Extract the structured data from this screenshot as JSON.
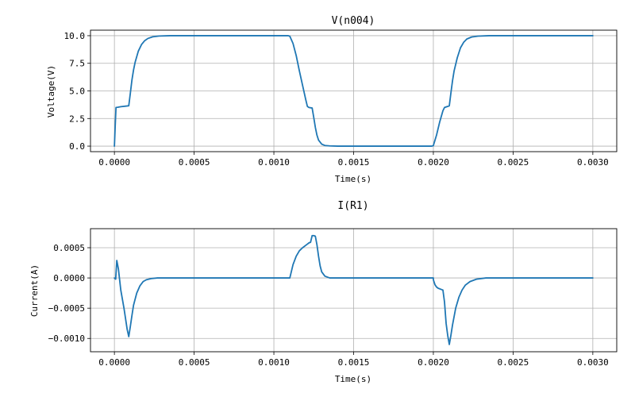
{
  "chart_data": [
    {
      "type": "line",
      "title": "V(n004)",
      "xlabel": "Time(s)",
      "ylabel": "Voltage(V)",
      "xlim": [
        -0.00015,
        0.00315
      ],
      "ylim": [
        -0.5,
        10.5
      ],
      "grid": true,
      "xticks": [
        0.0,
        0.0005,
        0.001,
        0.0015,
        0.002,
        0.0025,
        0.003
      ],
      "xtick_labels": [
        "0.0000",
        "0.0005",
        "0.0010",
        "0.0015",
        "0.0020",
        "0.0025",
        "0.0030"
      ],
      "yticks": [
        0.0,
        2.5,
        5.0,
        7.5,
        10.0
      ],
      "ytick_labels": [
        "0.0",
        "2.5",
        "5.0",
        "7.5",
        "10.0"
      ],
      "color": "#1f77b4",
      "series": [
        {
          "x": [
            0.0,
            5e-06,
            1e-05,
            2e-05,
            4e-05,
            7e-05,
            9e-05,
            0.0001,
            0.00011,
            0.00012,
            0.00013,
            0.00015,
            0.00017,
            0.00019,
            0.00021,
            0.00024,
            0.00028,
            0.00035,
            0.0005,
            0.0008,
            0.00109,
            0.0011,
            0.00112,
            0.00114,
            0.00116,
            0.00118,
            0.0012,
            0.00121,
            0.00122,
            0.00124,
            0.00125,
            0.00126,
            0.00127,
            0.00128,
            0.0013,
            0.00132,
            0.00135,
            0.0014,
            0.0016,
            0.0018,
            0.00199,
            0.002,
            0.00202,
            0.00204,
            0.00206,
            0.00207,
            0.00209,
            0.0021,
            0.00211,
            0.00212,
            0.00213,
            0.00215,
            0.00217,
            0.00219,
            0.00221,
            0.00224,
            0.00228,
            0.00235,
            0.0025,
            0.0028,
            0.003
          ],
          "y": [
            0.0,
            1.8,
            3.5,
            3.52,
            3.57,
            3.62,
            3.65,
            4.8,
            6.0,
            6.9,
            7.6,
            8.6,
            9.2,
            9.55,
            9.75,
            9.9,
            9.97,
            10.0,
            10.0,
            10.0,
            10.0,
            9.95,
            9.3,
            8.2,
            6.8,
            5.5,
            4.2,
            3.6,
            3.5,
            3.45,
            2.6,
            1.7,
            1.0,
            0.55,
            0.18,
            0.06,
            0.02,
            0.0,
            0.0,
            0.0,
            0.0,
            0.05,
            1.0,
            2.2,
            3.2,
            3.5,
            3.6,
            3.65,
            4.8,
            5.9,
            6.8,
            8.0,
            8.9,
            9.4,
            9.7,
            9.88,
            9.96,
            10.0,
            10.0,
            10.0,
            10.0
          ]
        }
      ]
    },
    {
      "type": "line",
      "title": "I(R1)",
      "xlabel": "Time(s)",
      "ylabel": "Current(A)",
      "xlim": [
        -0.00015,
        0.00315
      ],
      "ylim": [
        -0.00122,
        0.000815
      ],
      "grid": true,
      "xticks": [
        0.0,
        0.0005,
        0.001,
        0.0015,
        0.002,
        0.0025,
        0.003
      ],
      "xtick_labels": [
        "0.0000",
        "0.0005",
        "0.0010",
        "0.0015",
        "0.0020",
        "0.0025",
        "0.0030"
      ],
      "yticks": [
        -0.001,
        -0.0005,
        0.0,
        0.0005
      ],
      "ytick_labels": [
        "−0.0010",
        "−0.0005",
        "0.0000",
        "0.0005"
      ],
      "color": "#1f77b4",
      "series": [
        {
          "x": [
            0.0,
            8e-06,
            1.5e-05,
            2.5e-05,
            4e-05,
            6e-05,
            8e-05,
            9e-05,
            0.0001,
            0.00011,
            0.00012,
            0.00014,
            0.00016,
            0.00018,
            0.0002,
            0.00023,
            0.00027,
            0.00032,
            0.0004,
            0.0007,
            0.0011,
            0.00112,
            0.00114,
            0.00116,
            0.00118,
            0.0012,
            0.00121,
            0.00122,
            0.00123,
            0.00124,
            0.00125,
            0.00126,
            0.00127,
            0.00128,
            0.00129,
            0.0013,
            0.00132,
            0.00135,
            0.0014,
            0.0017,
            0.002,
            0.002,
            0.00201,
            0.00202,
            0.00203,
            0.00205,
            0.00206,
            0.00207,
            0.00208,
            0.00209,
            0.0021,
            0.00211,
            0.00212,
            0.00214,
            0.00216,
            0.00218,
            0.0022,
            0.00223,
            0.00227,
            0.00233,
            0.0024,
            0.0026,
            0.003
          ],
          "y": [
            0.0,
            -2e-05,
            0.00029,
            0.00015,
            -0.0002,
            -0.0005,
            -0.00085,
            -0.00097,
            -0.0008,
            -0.00062,
            -0.00045,
            -0.00025,
            -0.00013,
            -6e-05,
            -3e-05,
            -1e-05,
            0.0,
            0.0,
            0.0,
            0.0,
            0.0,
            0.00022,
            0.00036,
            0.00045,
            0.0005,
            0.00054,
            0.00056,
            0.00058,
            0.00059,
            0.0007,
            0.0007,
            0.00069,
            0.00055,
            0.00036,
            0.0002,
            0.0001,
            3e-05,
            0.0,
            0.0,
            0.0,
            0.0,
            -3e-05,
            -0.00011,
            -0.00015,
            -0.00017,
            -0.00019,
            -0.0002,
            -0.0004,
            -0.00075,
            -0.00095,
            -0.0011,
            -0.00095,
            -0.00078,
            -0.0005,
            -0.00032,
            -0.0002,
            -0.00012,
            -6e-05,
            -2e-05,
            0.0,
            0.0,
            0.0,
            0.0
          ]
        }
      ]
    }
  ]
}
